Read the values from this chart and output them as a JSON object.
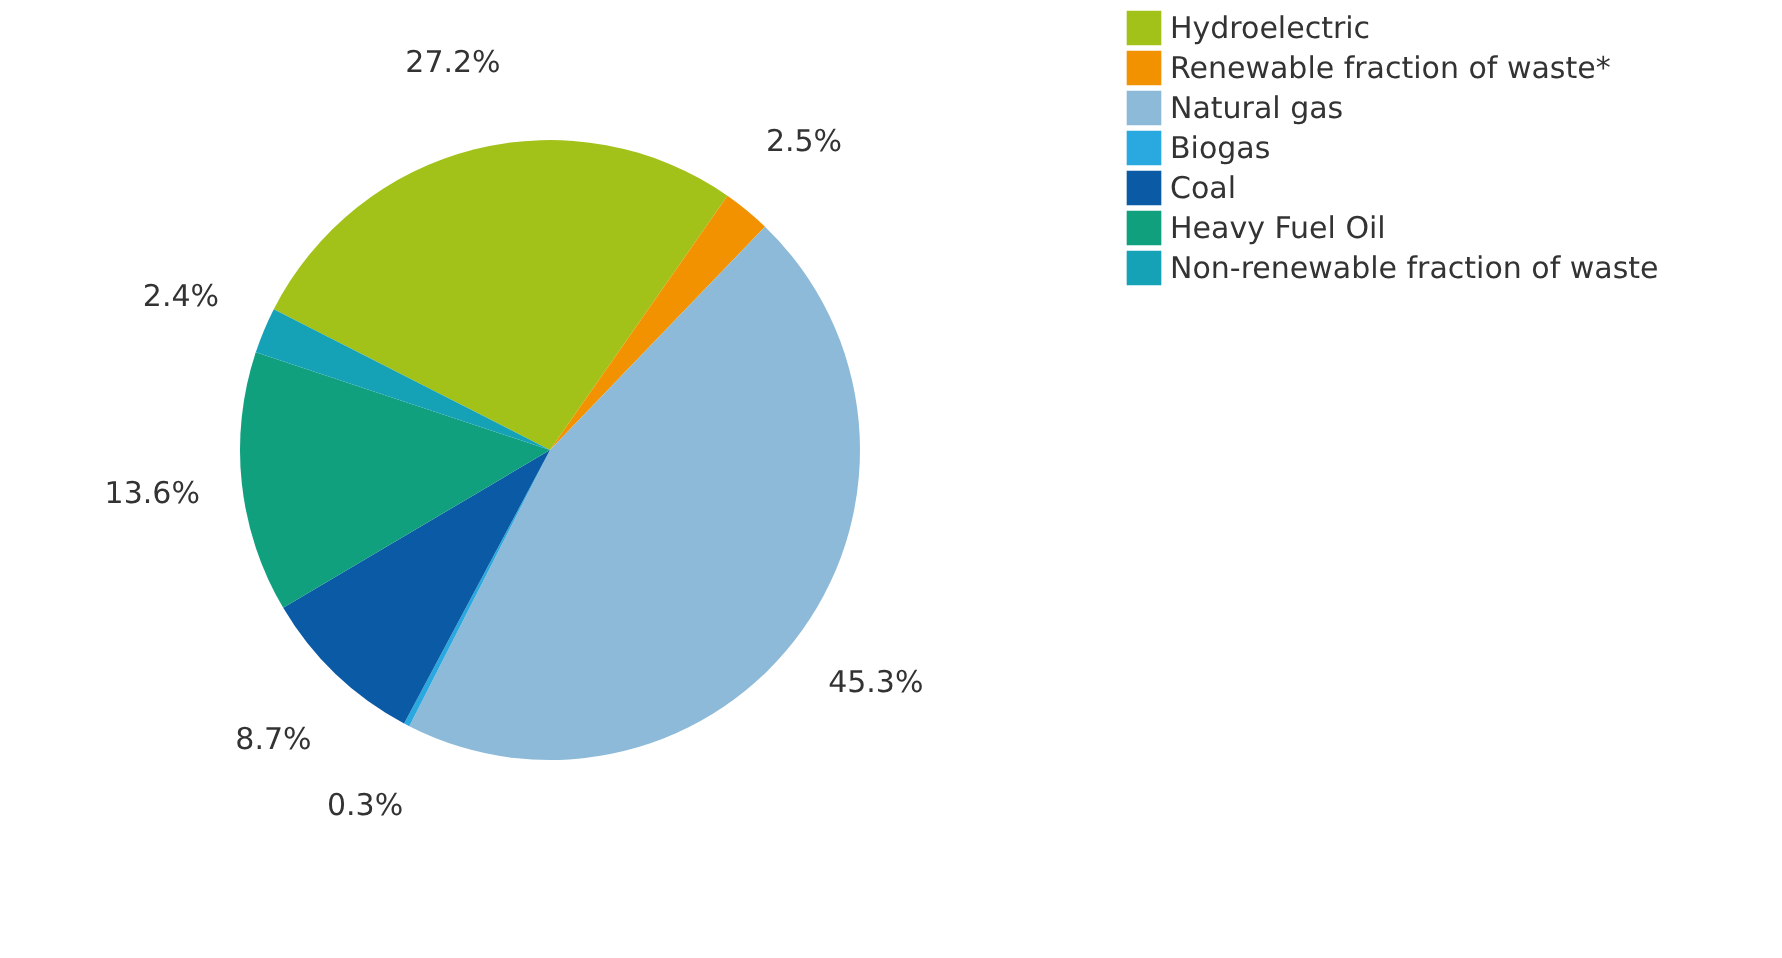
{
  "chart_data": {
    "type": "pie",
    "categories": [
      "Hydroelectric",
      "Renewable fraction of waste*",
      "Natural gas",
      "Biogas",
      "Coal",
      "Heavy Fuel Oil",
      "Non-renewable fraction of waste"
    ],
    "values": [
      27.2,
      2.5,
      45.3,
      0.3,
      8.7,
      13.6,
      2.4
    ],
    "colors": [
      "#a2c21a",
      "#f39200",
      "#8dbad8",
      "#2aa8e0",
      "#0b5aa6",
      "#11a07e",
      "#16a2b6"
    ],
    "value_labels": [
      "27.2%",
      "2.5%",
      "45.3%",
      "0.3%",
      "8.7%",
      "13.6%",
      "2.4%"
    ],
    "legend": "top right"
  }
}
